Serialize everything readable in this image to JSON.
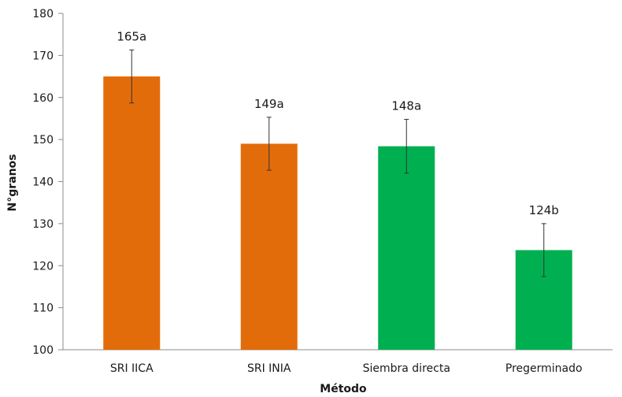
{
  "chart_data": {
    "type": "bar",
    "categories": [
      "SRI IICA",
      "SRI INIA",
      "Siembra directa",
      "Pregerminado"
    ],
    "values": [
      165,
      149,
      148.4,
      123.7
    ],
    "error": [
      6.3,
      6.3,
      6.4,
      6.3
    ],
    "data_labels": [
      "165a",
      "149a",
      "148a",
      "124b"
    ],
    "bar_colors": [
      "#e36c0a",
      "#e36c0a",
      "#00b050",
      "#00b050"
    ],
    "xlabel": "Método",
    "ylabel": "N°granos",
    "ylim": [
      100,
      180
    ],
    "yticks": [
      "100",
      "110",
      "120",
      "130",
      "140",
      "150",
      "160",
      "170",
      "180"
    ],
    "grid": false
  }
}
